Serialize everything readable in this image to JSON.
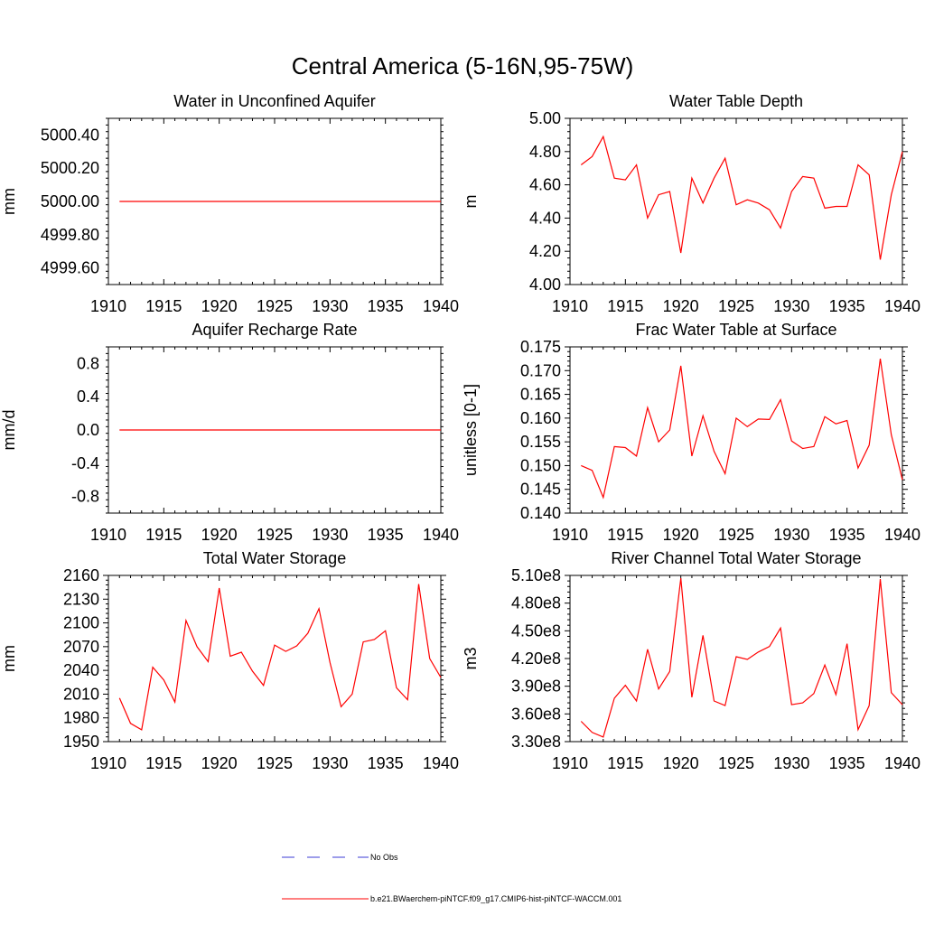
{
  "figure": {
    "title": "Central America (5-16N,95-75W)",
    "legend": [
      {
        "label": "No Obs",
        "color": "#3b3bd6",
        "style": "dashed"
      },
      {
        "label": "b.e21.BWaerchem-piNTCF.f09_g17.CMIP6-hist-piNTCF-WACCM.001",
        "color": "#ff0000",
        "style": "solid"
      }
    ]
  },
  "chart_data": [
    {
      "type": "line",
      "title": "Water in Unconfined Aquifer",
      "ylabel": "mm",
      "xlim": [
        1910,
        1940
      ],
      "ylim": [
        4999.5,
        5000.5
      ],
      "xticks": [
        1910,
        1915,
        1920,
        1925,
        1930,
        1935,
        1940
      ],
      "yticks": [
        4999.6,
        4999.8,
        5000.0,
        5000.2,
        5000.4
      ],
      "ytick_labels": [
        "4999.60",
        "4999.80",
        "5000.00",
        "5000.20",
        "5000.40"
      ],
      "color": "#ff0000",
      "x": [
        1911,
        1912,
        1913,
        1914,
        1915,
        1916,
        1917,
        1918,
        1919,
        1920,
        1921,
        1922,
        1923,
        1924,
        1925,
        1926,
        1927,
        1928,
        1929,
        1930,
        1931,
        1932,
        1933,
        1934,
        1935,
        1936,
        1937,
        1938,
        1939,
        1940
      ],
      "y": [
        5000,
        5000,
        5000,
        5000,
        5000,
        5000,
        5000,
        5000,
        5000,
        5000,
        5000,
        5000,
        5000,
        5000,
        5000,
        5000,
        5000,
        5000,
        5000,
        5000,
        5000,
        5000,
        5000,
        5000,
        5000,
        5000,
        5000,
        5000,
        5000,
        5000
      ]
    },
    {
      "type": "line",
      "title": "Water Table Depth",
      "ylabel": "m",
      "xlim": [
        1910,
        1940
      ],
      "ylim": [
        4.0,
        5.0
      ],
      "xticks": [
        1910,
        1915,
        1920,
        1925,
        1930,
        1935,
        1940
      ],
      "yticks": [
        4.0,
        4.2,
        4.4,
        4.6,
        4.8,
        5.0
      ],
      "ytick_labels": [
        "4.00",
        "4.20",
        "4.40",
        "4.60",
        "4.80",
        "5.00"
      ],
      "color": "#ff0000",
      "x": [
        1911,
        1912,
        1913,
        1914,
        1915,
        1916,
        1917,
        1918,
        1919,
        1920,
        1921,
        1922,
        1923,
        1924,
        1925,
        1926,
        1927,
        1928,
        1929,
        1930,
        1931,
        1932,
        1933,
        1934,
        1935,
        1936,
        1937,
        1938,
        1939,
        1940
      ],
      "y": [
        4.72,
        4.77,
        4.89,
        4.64,
        4.63,
        4.72,
        4.4,
        4.54,
        4.56,
        4.19,
        4.64,
        4.49,
        4.64,
        4.76,
        4.48,
        4.51,
        4.49,
        4.45,
        4.34,
        4.56,
        4.65,
        4.64,
        4.46,
        4.47,
        4.47,
        4.72,
        4.66,
        4.15,
        4.54,
        4.8
      ]
    },
    {
      "type": "line",
      "title": "Aquifer Recharge Rate",
      "ylabel": "mm/d",
      "xlim": [
        1910,
        1940
      ],
      "ylim": [
        -1.0,
        1.0
      ],
      "xticks": [
        1910,
        1915,
        1920,
        1925,
        1930,
        1935,
        1940
      ],
      "yticks": [
        -0.8,
        -0.4,
        0.0,
        0.4,
        0.8
      ],
      "ytick_labels": [
        "-0.8",
        "-0.4",
        "0.0",
        "0.4",
        "0.8"
      ],
      "color": "#ff0000",
      "x": [
        1911,
        1912,
        1913,
        1914,
        1915,
        1916,
        1917,
        1918,
        1919,
        1920,
        1921,
        1922,
        1923,
        1924,
        1925,
        1926,
        1927,
        1928,
        1929,
        1930,
        1931,
        1932,
        1933,
        1934,
        1935,
        1936,
        1937,
        1938,
        1939,
        1940
      ],
      "y": [
        0,
        0,
        0,
        0,
        0,
        0,
        0,
        0,
        0,
        0,
        0,
        0,
        0,
        0,
        0,
        0,
        0,
        0,
        0,
        0,
        0,
        0,
        0,
        0,
        0,
        0,
        0,
        0,
        0,
        0
      ]
    },
    {
      "type": "line",
      "title": "Frac Water Table at Surface",
      "ylabel": "unitless [0-1]",
      "xlim": [
        1910,
        1940
      ],
      "ylim": [
        0.14,
        0.175
      ],
      "xticks": [
        1910,
        1915,
        1920,
        1925,
        1930,
        1935,
        1940
      ],
      "yticks": [
        0.14,
        0.145,
        0.15,
        0.155,
        0.16,
        0.165,
        0.17,
        0.175
      ],
      "ytick_labels": [
        "0.140",
        "0.145",
        "0.150",
        "0.155",
        "0.160",
        "0.165",
        "0.170",
        "0.175"
      ],
      "color": "#ff0000",
      "x": [
        1911,
        1912,
        1913,
        1914,
        1915,
        1916,
        1917,
        1918,
        1919,
        1920,
        1921,
        1922,
        1923,
        1924,
        1925,
        1926,
        1927,
        1928,
        1929,
        1930,
        1931,
        1932,
        1933,
        1934,
        1935,
        1936,
        1937,
        1938,
        1939,
        1940
      ],
      "y": [
        0.15,
        0.149,
        0.1433,
        0.154,
        0.1538,
        0.152,
        0.1622,
        0.155,
        0.1575,
        0.171,
        0.152,
        0.1605,
        0.153,
        0.1483,
        0.16,
        0.1582,
        0.1598,
        0.1597,
        0.1639,
        0.1552,
        0.1536,
        0.154,
        0.1603,
        0.1588,
        0.1595,
        0.1495,
        0.1543,
        0.1725,
        0.1565,
        0.147
      ]
    },
    {
      "type": "line",
      "title": "Total Water Storage",
      "ylabel": "mm",
      "xlim": [
        1910,
        1940
      ],
      "ylim": [
        1950,
        2160
      ],
      "xticks": [
        1910,
        1915,
        1920,
        1925,
        1930,
        1935,
        1940
      ],
      "yticks": [
        1950,
        1980,
        2010,
        2040,
        2070,
        2100,
        2130,
        2160
      ],
      "ytick_labels": [
        "1950",
        "1980",
        "2010",
        "2040",
        "2070",
        "2100",
        "2130",
        "2160"
      ],
      "color": "#ff0000",
      "x": [
        1911,
        1912,
        1913,
        1914,
        1915,
        1916,
        1917,
        1918,
        1919,
        1920,
        1921,
        1922,
        1923,
        1924,
        1925,
        1926,
        1927,
        1928,
        1929,
        1930,
        1931,
        1932,
        1933,
        1934,
        1935,
        1936,
        1937,
        1938,
        1939,
        1940
      ],
      "y": [
        2005,
        1973,
        1965,
        2044,
        2028,
        2000,
        2103,
        2070,
        2051,
        2144,
        2058,
        2063,
        2039,
        2021,
        2072,
        2064,
        2071,
        2087,
        2118,
        2050,
        1994,
        2010,
        2076,
        2079,
        2090,
        2018,
        2003,
        2149,
        2055,
        2031
      ]
    },
    {
      "type": "line",
      "title": "River Channel Total Water Storage",
      "ylabel": "m3",
      "xlim": [
        1910,
        1940
      ],
      "ylim": [
        330000000,
        510000000
      ],
      "xticks": [
        1910,
        1915,
        1920,
        1925,
        1930,
        1935,
        1940
      ],
      "yticks": [
        330000000,
        360000000,
        390000000,
        420000000,
        450000000,
        480000000,
        510000000
      ],
      "ytick_labels": [
        "3.30e8",
        "3.60e8",
        "3.90e8",
        "4.20e8",
        "4.50e8",
        "4.80e8",
        "5.10e8"
      ],
      "color": "#ff0000",
      "x": [
        1911,
        1912,
        1913,
        1914,
        1915,
        1916,
        1917,
        1918,
        1919,
        1920,
        1921,
        1922,
        1923,
        1924,
        1925,
        1926,
        1927,
        1928,
        1929,
        1930,
        1931,
        1932,
        1933,
        1934,
        1935,
        1936,
        1937,
        1938,
        1939,
        1940
      ],
      "y": [
        352000000,
        340000000,
        335000000,
        377000000,
        391000000,
        374000000,
        430000000,
        387000000,
        406000000,
        507000000,
        378000000,
        445000000,
        374000000,
        369000000,
        422000000,
        419000000,
        427000000,
        433000000,
        453000000,
        370000000,
        372000000,
        382000000,
        413000000,
        381000000,
        436000000,
        343000000,
        369000000,
        506000000,
        383000000,
        370000000
      ]
    }
  ]
}
